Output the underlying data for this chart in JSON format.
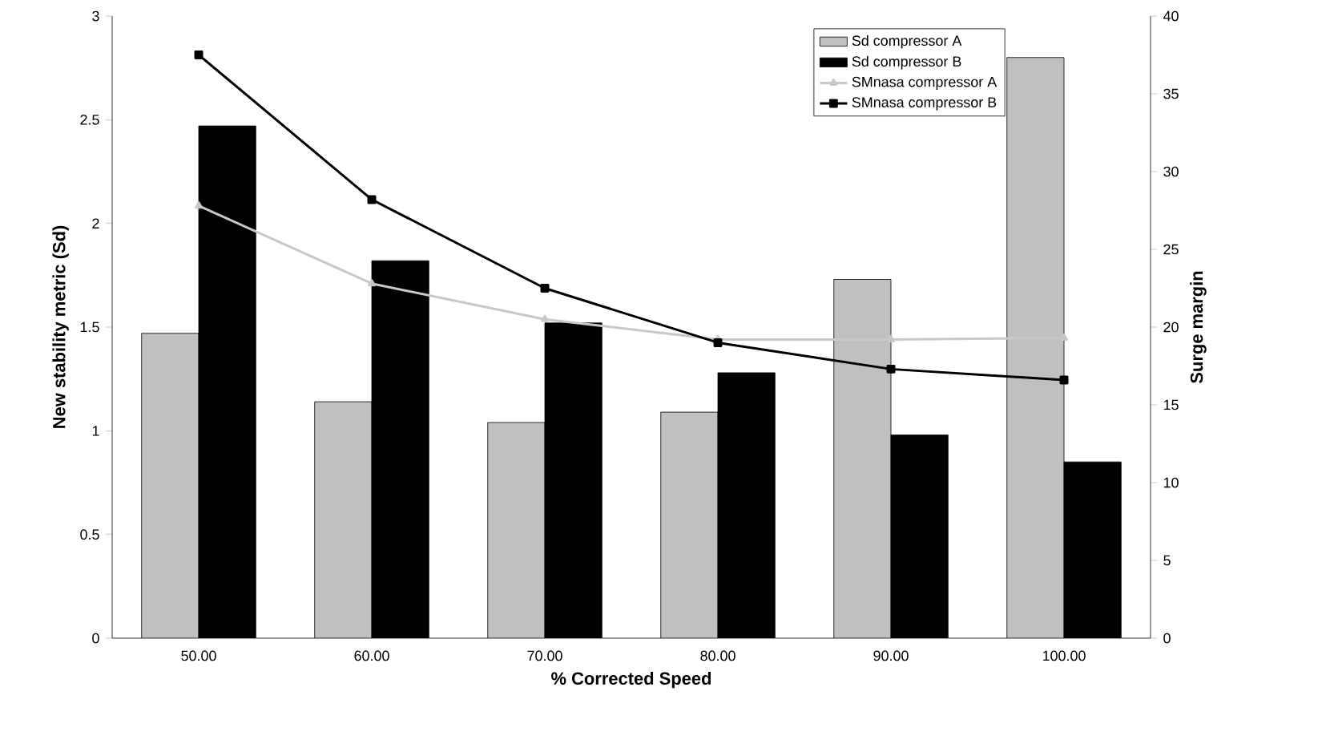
{
  "chart_data": {
    "type": "bar",
    "xlabel": "% Corrected Speed",
    "ylabel": "New stability metric (Sd)",
    "y2label": "Surge margin",
    "categories": [
      "50.00",
      "60.00",
      "70.00",
      "80.00",
      "90.00",
      "100.00"
    ],
    "series": [
      {
        "name": "Sd compressor A",
        "color": "#c0c0c0",
        "values": [
          1.47,
          1.14,
          1.04,
          1.09,
          1.73,
          2.8
        ]
      },
      {
        "name": "Sd compressor B",
        "color": "#000000",
        "values": [
          2.47,
          1.82,
          1.52,
          1.28,
          0.98,
          0.85
        ]
      },
      {
        "name": "SMnasa compressor A",
        "type": "line",
        "axis": "y2",
        "marker": "triangle",
        "color": "#c8c8c8",
        "values": [
          27.8,
          22.8,
          20.5,
          19.2,
          19.2,
          19.3
        ]
      },
      {
        "name": "SMnasa compressor B",
        "type": "line",
        "axis": "y2",
        "marker": "square",
        "color": "#000000",
        "values": [
          37.5,
          28.2,
          22.5,
          19,
          17.3,
          16.6
        ]
      }
    ],
    "ylim": [
      0,
      3
    ],
    "yticks": [
      0,
      0.5,
      1,
      1.5,
      2,
      2.5,
      3
    ],
    "y2lim": [
      0,
      40
    ],
    "y2ticks": [
      0,
      5,
      10,
      15,
      20,
      25,
      30,
      35,
      40
    ],
    "legend": "top right",
    "grid": false
  }
}
